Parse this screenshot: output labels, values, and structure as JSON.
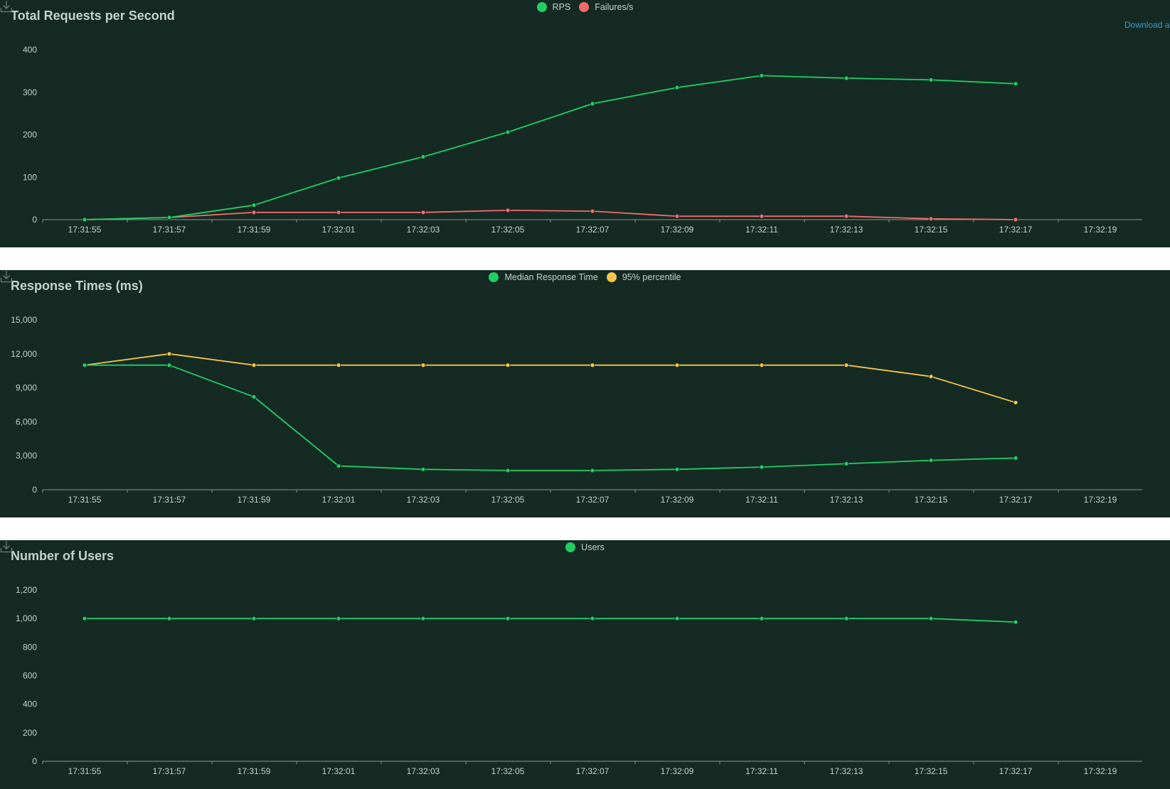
{
  "download_link": "Download a",
  "colors": {
    "rps": "#1fcf65",
    "failures": "#f26b6b",
    "median": "#1fcf65",
    "p95": "#f7c54a",
    "users": "#1fcf65",
    "axis_text": "#c3d2cc",
    "axis_line": "#8a9590"
  },
  "icons": {
    "download": "download-icon"
  },
  "chart_data": [
    {
      "type": "line",
      "title": "Total Requests per Second",
      "x": [
        "17:31:55",
        "17:31:57",
        "17:31:59",
        "17:32:01",
        "17:32:03",
        "17:32:05",
        "17:32:07",
        "17:32:09",
        "17:32:11",
        "17:32:13",
        "17:32:15",
        "17:32:17"
      ],
      "x_ticks": [
        "17:31:55",
        "17:31:57",
        "17:31:59",
        "17:32:01",
        "17:32:03",
        "17:32:05",
        "17:32:07",
        "17:32:09",
        "17:32:11",
        "17:32:13",
        "17:32:15",
        "17:32:17",
        "17:32:19"
      ],
      "y_ticks": [
        "0",
        "100",
        "200",
        "300",
        "400"
      ],
      "ylim": [
        0,
        400
      ],
      "legend_position": "top-center",
      "series": [
        {
          "name": "RPS",
          "color": "#1fcf65",
          "values": [
            0,
            5,
            34,
            98,
            148,
            206,
            273,
            311,
            339,
            333,
            329,
            320
          ]
        },
        {
          "name": "Failures/s",
          "color": "#f26b6b",
          "values": [
            0,
            5,
            17,
            17,
            17,
            22,
            20,
            8,
            8,
            8,
            2,
            0
          ]
        }
      ]
    },
    {
      "type": "line",
      "title": "Response Times (ms)",
      "x": [
        "17:31:55",
        "17:31:57",
        "17:31:59",
        "17:32:01",
        "17:32:03",
        "17:32:05",
        "17:32:07",
        "17:32:09",
        "17:32:11",
        "17:32:13",
        "17:32:15",
        "17:32:17"
      ],
      "x_ticks": [
        "17:31:55",
        "17:31:57",
        "17:31:59",
        "17:32:01",
        "17:32:03",
        "17:32:05",
        "17:32:07",
        "17:32:09",
        "17:32:11",
        "17:32:13",
        "17:32:15",
        "17:32:17",
        "17:32:19"
      ],
      "y_ticks": [
        "0",
        "3,000",
        "6,000",
        "9,000",
        "12,000",
        "15,000"
      ],
      "ylim": [
        0,
        15000
      ],
      "legend_position": "top-center",
      "series": [
        {
          "name": "Median Response Time",
          "color": "#1fcf65",
          "values": [
            11000,
            11000,
            8200,
            2100,
            1800,
            1700,
            1700,
            1800,
            2000,
            2300,
            2600,
            2800
          ]
        },
        {
          "name": "95% percentile",
          "color": "#f7c54a",
          "values": [
            11000,
            12000,
            11000,
            11000,
            11000,
            11000,
            11000,
            11000,
            11000,
            11000,
            10000,
            7700
          ]
        }
      ]
    },
    {
      "type": "line",
      "title": "Number of Users",
      "x": [
        "17:31:55",
        "17:31:57",
        "17:31:59",
        "17:32:01",
        "17:32:03",
        "17:32:05",
        "17:32:07",
        "17:32:09",
        "17:32:11",
        "17:32:13",
        "17:32:15",
        "17:32:17"
      ],
      "x_ticks": [
        "17:31:55",
        "17:31:57",
        "17:31:59",
        "17:32:01",
        "17:32:03",
        "17:32:05",
        "17:32:07",
        "17:32:09",
        "17:32:11",
        "17:32:13",
        "17:32:15",
        "17:32:17",
        "17:32:19"
      ],
      "y_ticks": [
        "0",
        "200",
        "400",
        "600",
        "800",
        "1,000",
        "1,200"
      ],
      "ylim": [
        0,
        1200
      ],
      "legend_position": "top-center",
      "series": [
        {
          "name": "Users",
          "color": "#1fcf65",
          "values": [
            1000,
            1000,
            1000,
            1000,
            1000,
            1000,
            1000,
            1000,
            1000,
            1000,
            1000,
            975
          ]
        }
      ]
    }
  ]
}
